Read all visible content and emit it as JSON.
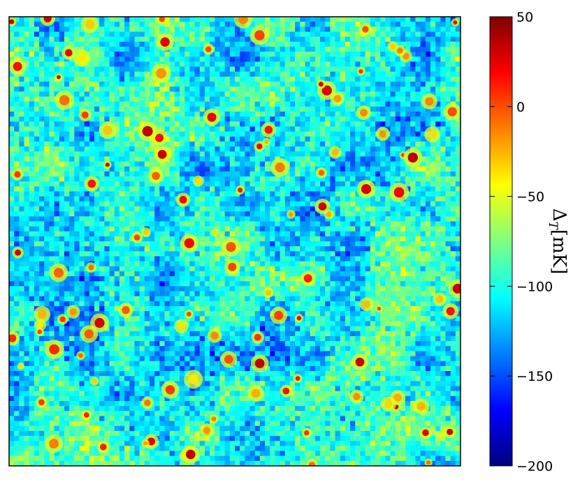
{
  "chart_data": {
    "type": "heatmap",
    "title": "",
    "xlabel": "",
    "ylabel": "",
    "x_ticks": [],
    "y_ticks": [],
    "colormap": "jet",
    "colorbar": {
      "label_main": "Δ",
      "label_sub": "T",
      "label_unit": "[mK]",
      "range": [
        -200,
        50
      ],
      "ticks": [
        {
          "value": 50,
          "label": "50"
        },
        {
          "value": 0,
          "label": "0"
        },
        {
          "value": -50,
          "label": "−50"
        },
        {
          "value": -100,
          "label": "−100"
        },
        {
          "value": -150,
          "label": "−150"
        },
        {
          "value": -200,
          "label": "−200"
        }
      ],
      "placement": "right"
    },
    "field": {
      "description_of_values": "noisy random field of brightness temperature",
      "typical_value": -105,
      "min_value": -200,
      "max_value": 50,
      "hotspot_count": 120
    }
  }
}
